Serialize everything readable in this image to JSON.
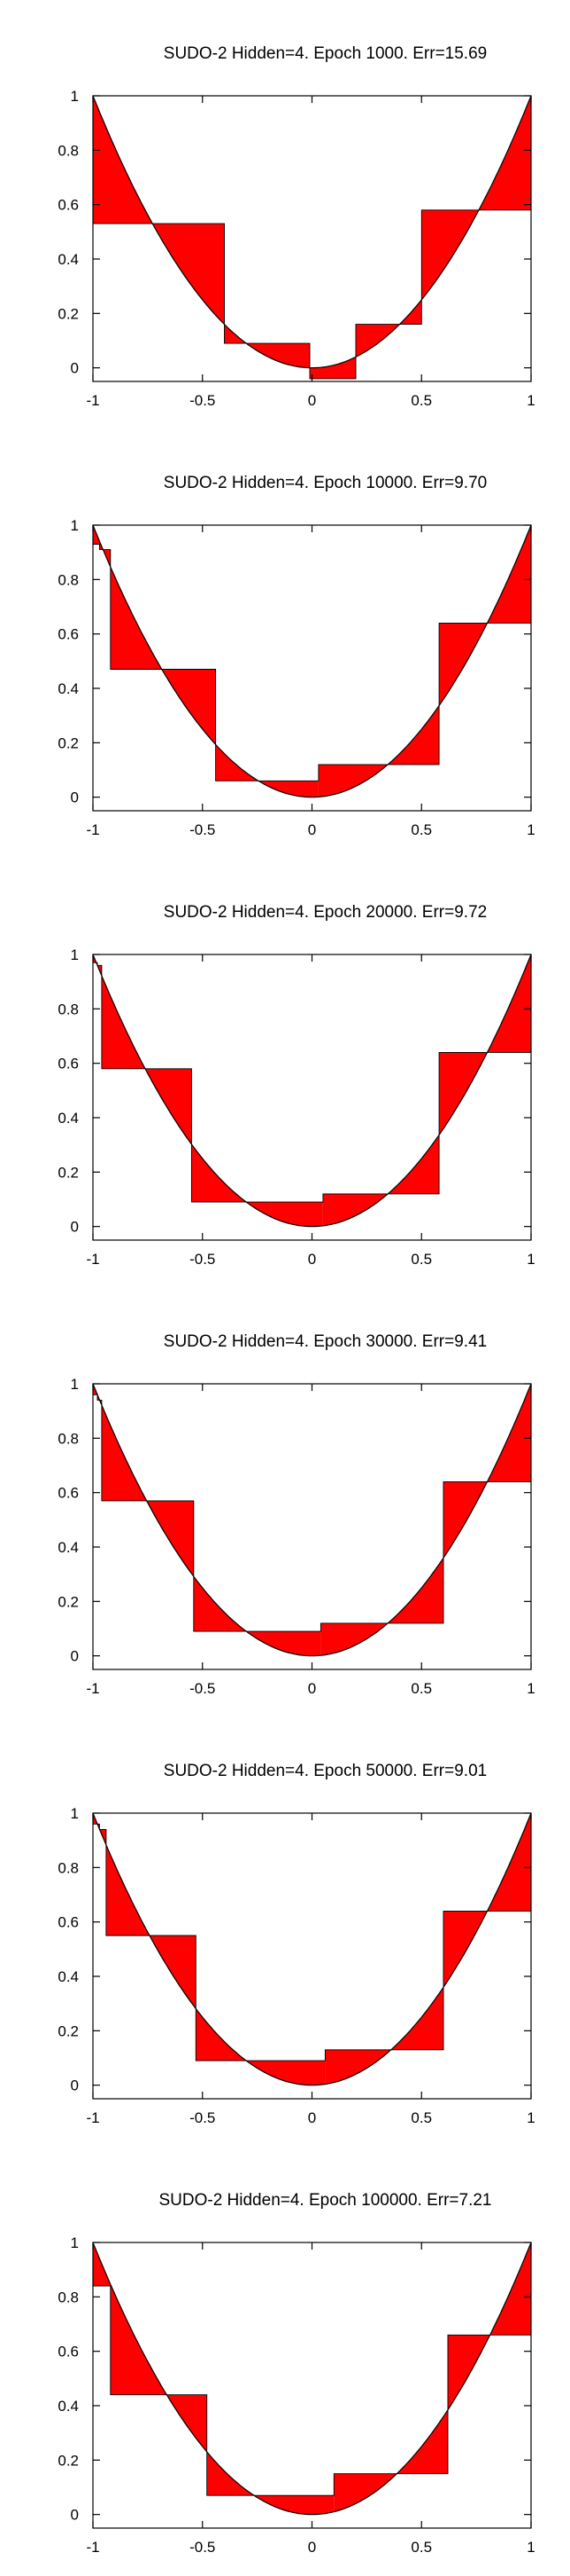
{
  "chart_data": [
    {
      "type": "area",
      "title": "SUDO-2 Hidden=4. Epoch 1000. Err=15.69",
      "xlim": [
        -1,
        1
      ],
      "ylim": [
        -0.05,
        1.0
      ],
      "x_ticks": [
        -1,
        -0.5,
        0,
        0.5,
        1
      ],
      "x_tick_labels": [
        "-1",
        "-0.5",
        "0",
        "0.5",
        "1"
      ],
      "y_ticks": [
        0,
        0.2,
        0.4,
        0.6,
        0.8,
        1
      ],
      "y_tick_labels": [
        "0",
        "0.2",
        "0.4",
        "0.6",
        "0.8",
        "1"
      ],
      "grid": false,
      "target_function": "y = x^2",
      "fill_color": "#ff0000",
      "approximation": [
        [
          -1.0,
          0.53
        ],
        [
          -0.4,
          0.09
        ],
        [
          -0.01,
          -0.04
        ],
        [
          0.2,
          0.16
        ],
        [
          0.5,
          0.58
        ]
      ]
    },
    {
      "type": "area",
      "title": "SUDO-2 Hidden=4. Epoch 10000. Err=9.70",
      "xlim": [
        -1,
        1
      ],
      "ylim": [
        -0.05,
        1.0
      ],
      "x_ticks": [
        -1,
        -0.5,
        0,
        0.5,
        1
      ],
      "x_tick_labels": [
        "-1",
        "-0.5",
        "0",
        "0.5",
        "1"
      ],
      "y_ticks": [
        0,
        0.2,
        0.4,
        0.6,
        0.8,
        1
      ],
      "y_tick_labels": [
        "0",
        "0.2",
        "0.4",
        "0.6",
        "0.8",
        "1"
      ],
      "grid": false,
      "target_function": "y = x^2",
      "fill_color": "#ff0000",
      "approximation": [
        [
          -1.0,
          0.93
        ],
        [
          -0.97,
          0.91
        ],
        [
          -0.92,
          0.47
        ],
        [
          -0.44,
          0.06
        ],
        [
          0.03,
          0.12
        ],
        [
          0.58,
          0.64
        ]
      ]
    },
    {
      "type": "area",
      "title": "SUDO-2 Hidden=4. Epoch 20000. Err=9.72",
      "xlim": [
        -1,
        1
      ],
      "ylim": [
        -0.05,
        1.0
      ],
      "x_ticks": [
        -1,
        -0.5,
        0,
        0.5,
        1
      ],
      "x_tick_labels": [
        "-1",
        "-0.5",
        "0",
        "0.5",
        "1"
      ],
      "y_ticks": [
        0,
        0.2,
        0.4,
        0.6,
        0.8,
        1
      ],
      "y_tick_labels": [
        "0",
        "0.2",
        "0.4",
        "0.6",
        "0.8",
        "1"
      ],
      "grid": false,
      "target_function": "y = x^2",
      "fill_color": "#ff0000",
      "approximation": [
        [
          -1.0,
          0.97
        ],
        [
          -0.98,
          0.96
        ],
        [
          -0.96,
          0.58
        ],
        [
          -0.55,
          0.09
        ],
        [
          0.05,
          0.12
        ],
        [
          0.58,
          0.64
        ]
      ]
    },
    {
      "type": "area",
      "title": "SUDO-2 Hidden=4. Epoch 30000. Err=9.41",
      "xlim": [
        -1,
        1
      ],
      "ylim": [
        -0.05,
        1.0
      ],
      "x_ticks": [
        -1,
        -0.5,
        0,
        0.5,
        1
      ],
      "x_tick_labels": [
        "-1",
        "-0.5",
        "0",
        "0.5",
        "1"
      ],
      "y_ticks": [
        0,
        0.2,
        0.4,
        0.6,
        0.8,
        1
      ],
      "y_tick_labels": [
        "0",
        "0.2",
        "0.4",
        "0.6",
        "0.8",
        "1"
      ],
      "grid": false,
      "target_function": "y = x^2",
      "fill_color": "#ff0000",
      "approximation": [
        [
          -1.0,
          0.96
        ],
        [
          -0.98,
          0.94
        ],
        [
          -0.96,
          0.57
        ],
        [
          -0.54,
          0.09
        ],
        [
          0.04,
          0.12
        ],
        [
          0.6,
          0.64
        ]
      ]
    },
    {
      "type": "area",
      "title": "SUDO-2 Hidden=4. Epoch 50000. Err=9.01",
      "xlim": [
        -1,
        1
      ],
      "ylim": [
        -0.05,
        1.0
      ],
      "x_ticks": [
        -1,
        -0.5,
        0,
        0.5,
        1
      ],
      "x_tick_labels": [
        "-1",
        "-0.5",
        "0",
        "0.5",
        "1"
      ],
      "y_ticks": [
        0,
        0.2,
        0.4,
        0.6,
        0.8,
        1
      ],
      "y_tick_labels": [
        "0",
        "0.2",
        "0.4",
        "0.6",
        "0.8",
        "1"
      ],
      "grid": false,
      "target_function": "y = x^2",
      "fill_color": "#ff0000",
      "approximation": [
        [
          -1.0,
          0.96
        ],
        [
          -0.97,
          0.94
        ],
        [
          -0.94,
          0.55
        ],
        [
          -0.53,
          0.09
        ],
        [
          0.06,
          0.13
        ],
        [
          0.6,
          0.64
        ]
      ]
    },
    {
      "type": "area",
      "title": "SUDO-2 Hidden=4. Epoch 100000. Err=7.21",
      "xlim": [
        -1,
        1
      ],
      "ylim": [
        -0.05,
        1.0
      ],
      "x_ticks": [
        -1,
        -0.5,
        0,
        0.5,
        1
      ],
      "x_tick_labels": [
        "-1",
        "-0.5",
        "0",
        "0.5",
        "1"
      ],
      "y_ticks": [
        0,
        0.2,
        0.4,
        0.6,
        0.8,
        1
      ],
      "y_tick_labels": [
        "0",
        "0.2",
        "0.4",
        "0.6",
        "0.8",
        "1"
      ],
      "grid": false,
      "target_function": "y = x^2",
      "fill_color": "#ff0000",
      "approximation": [
        [
          -1.0,
          0.84
        ],
        [
          -0.92,
          0.44
        ],
        [
          -0.48,
          0.07
        ],
        [
          0.1,
          0.15
        ],
        [
          0.62,
          0.66
        ]
      ]
    }
  ]
}
